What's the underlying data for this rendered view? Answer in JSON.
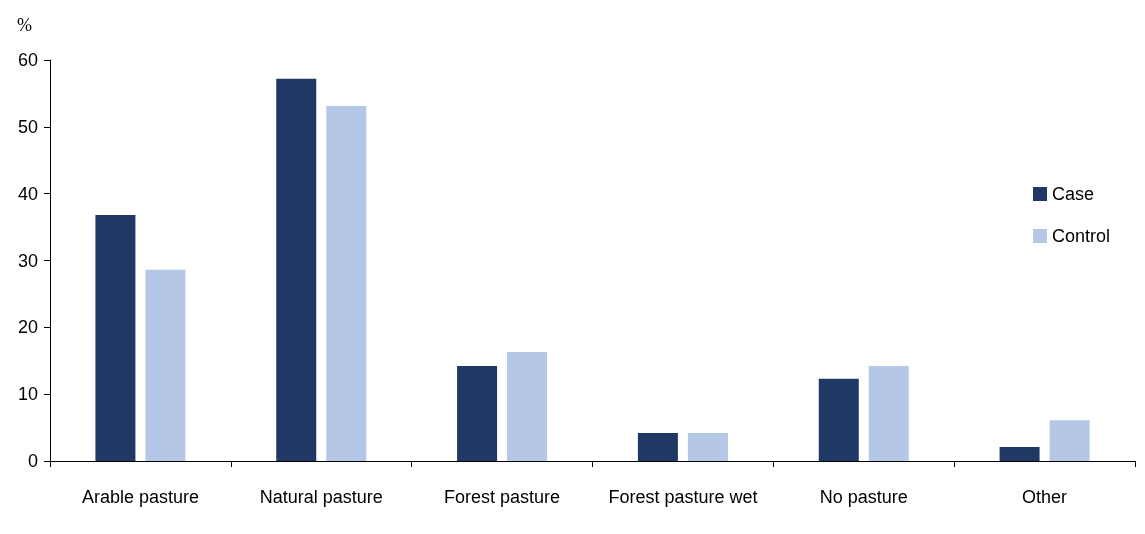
{
  "chart_data": {
    "type": "bar",
    "ylabel": "%",
    "categories": [
      "Arable pasture",
      "Natural pasture",
      "Forest pasture",
      "Forest pasture wet",
      "No pasture",
      "Other"
    ],
    "series": [
      {
        "name": "Case",
        "color": "#203864",
        "values": [
          36.8,
          57.2,
          14.2,
          4.2,
          12.3,
          2.1
        ]
      },
      {
        "name": "Control",
        "color": "#b4c7e7",
        "values": [
          28.6,
          53.1,
          16.3,
          4.2,
          14.2,
          6.1
        ]
      }
    ],
    "ylim": [
      0,
      60
    ],
    "yticks": [
      0,
      10,
      20,
      30,
      40,
      50,
      60
    ],
    "grid": false,
    "legend": "right"
  }
}
